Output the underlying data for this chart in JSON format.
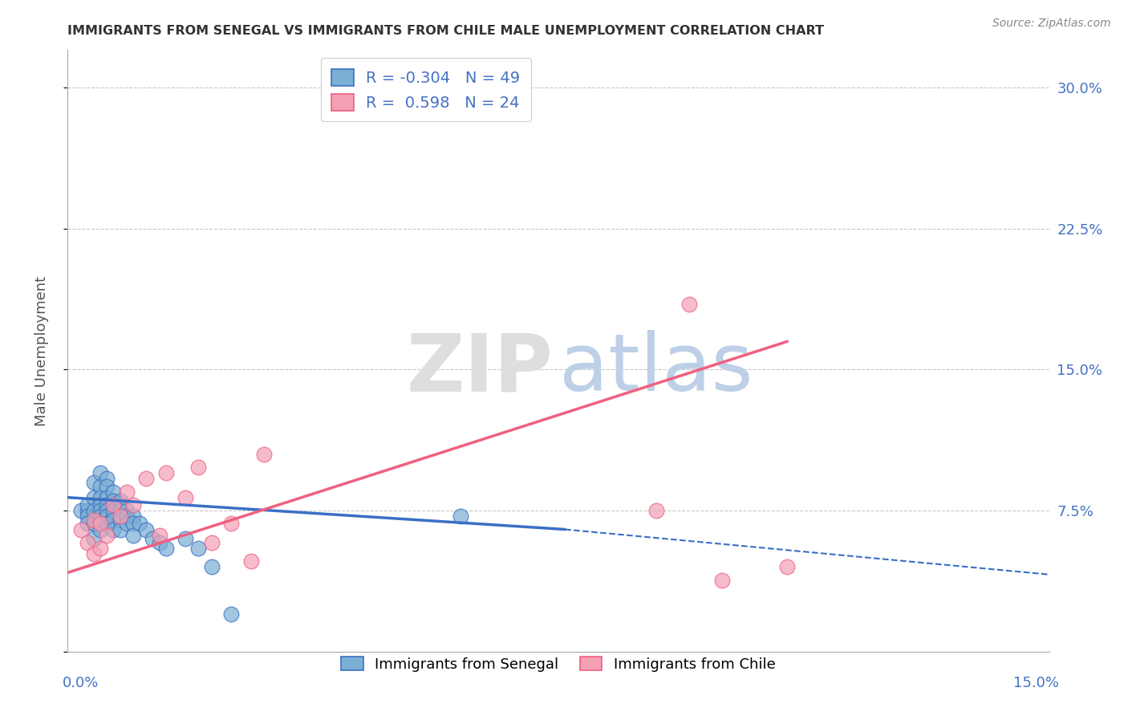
{
  "title": "IMMIGRANTS FROM SENEGAL VS IMMIGRANTS FROM CHILE MALE UNEMPLOYMENT CORRELATION CHART",
  "source": "Source: ZipAtlas.com",
  "ylabel": "Male Unemployment",
  "color_senegal": "#7BAFD4",
  "color_chile": "#F4A0B5",
  "color_senegal_line": "#3A6FC4",
  "color_chile_line": "#F06080",
  "xlim": [
    0.0,
    0.15
  ],
  "ylim": [
    0.0,
    0.32
  ],
  "ytick_values": [
    0.0,
    0.075,
    0.15,
    0.225,
    0.3
  ],
  "ytick_labels": [
    "",
    "7.5%",
    "15.0%",
    "22.5%",
    "30.0%"
  ],
  "senegal_line": {
    "x0": 0.0,
    "y0": 0.082,
    "x1": 0.076,
    "y1": 0.065,
    "x1_dash": 0.15,
    "y1_dash": 0.041
  },
  "chile_line": {
    "x0": 0.0,
    "y0": 0.042,
    "x1": 0.11,
    "y1": 0.165
  },
  "senegal_x": [
    0.002,
    0.003,
    0.003,
    0.003,
    0.003,
    0.004,
    0.004,
    0.004,
    0.004,
    0.004,
    0.005,
    0.005,
    0.005,
    0.005,
    0.005,
    0.005,
    0.005,
    0.006,
    0.006,
    0.006,
    0.006,
    0.006,
    0.006,
    0.006,
    0.007,
    0.007,
    0.007,
    0.007,
    0.007,
    0.008,
    0.008,
    0.008,
    0.008,
    0.009,
    0.009,
    0.009,
    0.01,
    0.01,
    0.01,
    0.011,
    0.012,
    0.013,
    0.014,
    0.015,
    0.018,
    0.02,
    0.022,
    0.025,
    0.06
  ],
  "senegal_y": [
    0.075,
    0.075,
    0.078,
    0.072,
    0.068,
    0.09,
    0.082,
    0.075,
    0.068,
    0.06,
    0.095,
    0.088,
    0.082,
    0.078,
    0.075,
    0.072,
    0.065,
    0.092,
    0.088,
    0.082,
    0.078,
    0.075,
    0.072,
    0.068,
    0.085,
    0.08,
    0.075,
    0.07,
    0.065,
    0.08,
    0.075,
    0.07,
    0.065,
    0.075,
    0.072,
    0.068,
    0.072,
    0.068,
    0.062,
    0.068,
    0.065,
    0.06,
    0.058,
    0.055,
    0.06,
    0.055,
    0.045,
    0.02,
    0.072
  ],
  "chile_x": [
    0.002,
    0.003,
    0.004,
    0.004,
    0.005,
    0.005,
    0.006,
    0.007,
    0.008,
    0.009,
    0.01,
    0.012,
    0.014,
    0.015,
    0.018,
    0.02,
    0.022,
    0.025,
    0.028,
    0.03,
    0.09,
    0.095,
    0.1,
    0.11
  ],
  "chile_y": [
    0.065,
    0.058,
    0.07,
    0.052,
    0.068,
    0.055,
    0.062,
    0.078,
    0.072,
    0.085,
    0.078,
    0.092,
    0.062,
    0.095,
    0.082,
    0.098,
    0.058,
    0.068,
    0.048,
    0.105,
    0.075,
    0.185,
    0.038,
    0.045
  ]
}
